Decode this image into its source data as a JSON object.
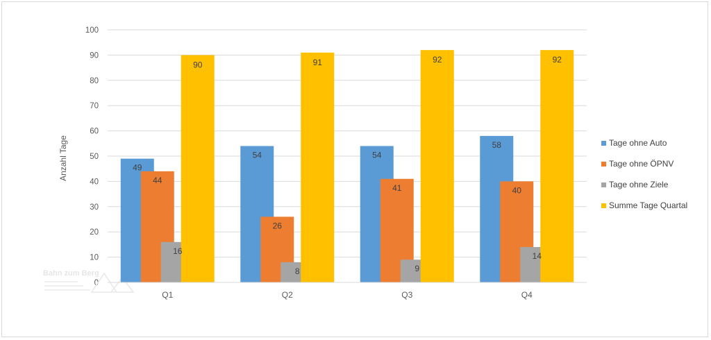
{
  "chart_data": {
    "type": "bar",
    "title": "",
    "xlabel": "",
    "ylabel": "Anzahl Tage",
    "ylim": [
      0,
      100
    ],
    "ytick_step": 10,
    "grid": true,
    "legend_position": "right",
    "categories": [
      "Q1",
      "Q2",
      "Q3",
      "Q4"
    ],
    "series": [
      {
        "name": "Tage ohne Auto",
        "color": "#5b9bd5",
        "values": [
          49,
          54,
          54,
          58
        ]
      },
      {
        "name": "Tage ohne ÖPNV",
        "color": "#ed7d31",
        "values": [
          44,
          26,
          41,
          40
        ]
      },
      {
        "name": "Tage ohne Ziele",
        "color": "#a5a5a5",
        "values": [
          16,
          8,
          9,
          14
        ]
      },
      {
        "name": "Summe Tage Quartal",
        "color": "#ffc000",
        "values": [
          90,
          91,
          92,
          92
        ]
      }
    ]
  },
  "watermark": {
    "text": "Bahn zum Berg"
  }
}
